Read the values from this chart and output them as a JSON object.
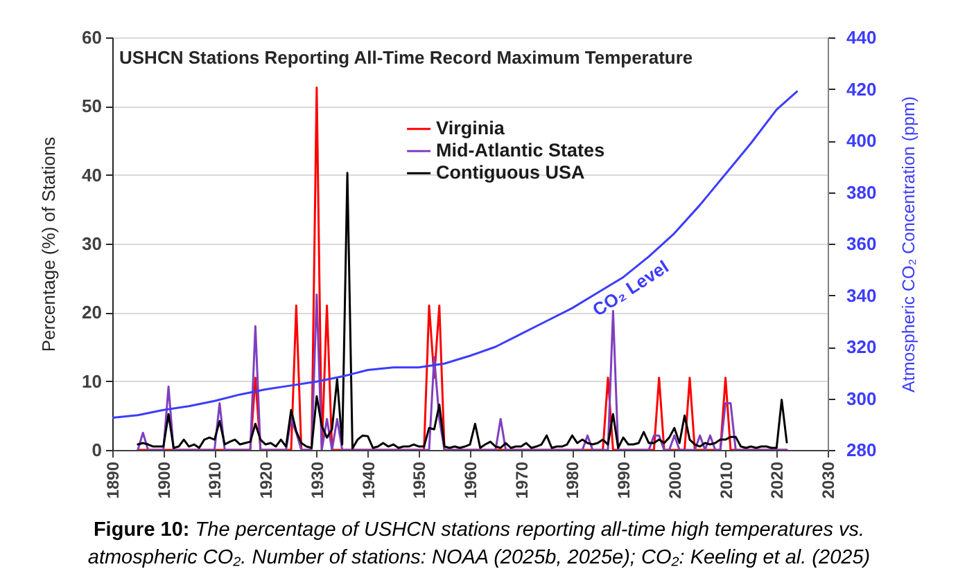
{
  "chart_data": {
    "type": "line",
    "title": "USHCN Stations Reporting All-Time Record Maximum Temperature",
    "ylabel": "Percentage (%) of Stations",
    "y2label": "Atmospheric CO₂ Concentration (ppm)",
    "xlim": [
      1890,
      2030
    ],
    "xticks": [
      1890,
      1900,
      1910,
      1920,
      1930,
      1940,
      1950,
      1960,
      1970,
      1980,
      1990,
      2000,
      2010,
      2020,
      2030
    ],
    "ylim": [
      0,
      60
    ],
    "yticks": [
      0,
      10,
      20,
      30,
      40,
      50,
      60
    ],
    "y2lim": [
      280,
      440
    ],
    "y2ticks": [
      280,
      300,
      320,
      340,
      360,
      380,
      400,
      420,
      440
    ],
    "grid": "y",
    "legend": "top",
    "series": [
      {
        "name": "Virginia",
        "color": "#ff0000",
        "x": [
          1895,
          1917,
          1918,
          1919,
          1925,
          1926,
          1927,
          1929,
          1930,
          1931,
          1932,
          1933,
          1951,
          1952,
          1953,
          1954,
          1955,
          1986,
          1987,
          1988,
          1996,
          1997,
          1998,
          2002,
          2003,
          2004,
          2009,
          2010,
          2011,
          2022
        ],
        "values": [
          0,
          0,
          10.5,
          0,
          0,
          21,
          0,
          0,
          52.7,
          0,
          21,
          0,
          0,
          21,
          10.5,
          21,
          0,
          0,
          10.5,
          0,
          0,
          10.5,
          0,
          0,
          10.5,
          0,
          0,
          10.5,
          0,
          0
        ]
      },
      {
        "name": "Mid-Atlantic States",
        "color": "#7f3fbf",
        "x": [
          1895,
          1896,
          1897,
          1900,
          1901,
          1902,
          1910,
          1911,
          1912,
          1917,
          1918,
          1919,
          1924,
          1925,
          1926,
          1927,
          1929,
          1930,
          1931,
          1932,
          1933,
          1934,
          1935,
          1952,
          1953,
          1954,
          1955,
          1965,
          1966,
          1967,
          1982,
          1983,
          1984,
          1987,
          1988,
          1989,
          1995,
          1996,
          1997,
          1998,
          1999,
          2000,
          2001,
          2004,
          2005,
          2006,
          2007,
          2008,
          2009,
          2010,
          2011,
          2012,
          2022
        ],
        "values": [
          0,
          2.5,
          0,
          0,
          9.2,
          0,
          0,
          6.8,
          0,
          0,
          18.0,
          0,
          0,
          4.5,
          2.5,
          0,
          0,
          22.6,
          0,
          4.5,
          0,
          4.5,
          0,
          0,
          13.5,
          4.5,
          0,
          0,
          4.5,
          0,
          0,
          2.1,
          0,
          0,
          20.2,
          0,
          0,
          2.1,
          2.1,
          0,
          0,
          2.1,
          0,
          0,
          2.1,
          0,
          2.1,
          0,
          0,
          6.8,
          6.8,
          0,
          0
        ]
      },
      {
        "name": "Contiguous USA",
        "color": "#000000",
        "x": [
          1895,
          1896,
          1897,
          1898,
          1899,
          1900,
          1901,
          1902,
          1903,
          1904,
          1905,
          1906,
          1907,
          1908,
          1909,
          1910,
          1911,
          1912,
          1913,
          1914,
          1915,
          1916,
          1917,
          1918,
          1919,
          1920,
          1921,
          1922,
          1923,
          1924,
          1925,
          1926,
          1927,
          1928,
          1929,
          1930,
          1931,
          1932,
          1933,
          1934,
          1935,
          1936,
          1937,
          1938,
          1939,
          1940,
          1941,
          1942,
          1943,
          1944,
          1945,
          1946,
          1947,
          1948,
          1949,
          1950,
          1951,
          1952,
          1953,
          1954,
          1955,
          1956,
          1957,
          1958,
          1959,
          1960,
          1961,
          1962,
          1963,
          1964,
          1965,
          1966,
          1967,
          1968,
          1969,
          1970,
          1971,
          1972,
          1973,
          1974,
          1975,
          1976,
          1977,
          1978,
          1979,
          1980,
          1981,
          1982,
          1983,
          1984,
          1985,
          1986,
          1987,
          1988,
          1989,
          1990,
          1991,
          1992,
          1993,
          1994,
          1995,
          1996,
          1997,
          1998,
          1999,
          2000,
          2001,
          2002,
          2003,
          2004,
          2005,
          2006,
          2007,
          2008,
          2009,
          2010,
          2011,
          2012,
          2013,
          2014,
          2015,
          2016,
          2017,
          2018,
          2019,
          2020,
          2021,
          2022
        ],
        "values": [
          0.8,
          1.0,
          0.8,
          0.5,
          0.5,
          0.5,
          5.2,
          0.3,
          0.5,
          1.5,
          0.5,
          0.8,
          0.3,
          1.5,
          1.8,
          1.5,
          4.2,
          0.8,
          1.2,
          1.5,
          0.8,
          1.0,
          1.2,
          3.8,
          1.5,
          0.8,
          1.0,
          0.5,
          1.5,
          0.5,
          5.8,
          2.7,
          1.0,
          0.5,
          0.3,
          7.8,
          3.5,
          1.8,
          3.0,
          10.3,
          0.8,
          40.3,
          0.2,
          1.5,
          2.1,
          2.0,
          0.3,
          0.5,
          1.0,
          0.5,
          0.8,
          0.3,
          0.5,
          0.5,
          0.8,
          0.5,
          0.5,
          3.2,
          3.0,
          6.6,
          0.5,
          0.3,
          0.5,
          0.3,
          0.5,
          0.8,
          3.8,
          0.3,
          0.8,
          1.2,
          0.5,
          0.3,
          1.0,
          0.3,
          0.5,
          0.5,
          1.0,
          0.3,
          0.5,
          0.8,
          2.1,
          0.3,
          0.5,
          0.5,
          0.8,
          2.1,
          1.0,
          1.5,
          1.0,
          0.8,
          1.0,
          1.5,
          0.8,
          5.2,
          0.3,
          1.8,
          0.8,
          0.8,
          1.0,
          2.6,
          1.0,
          1.0,
          1.5,
          1.0,
          1.8,
          3.2,
          1.0,
          5.0,
          1.5,
          0.8,
          0.5,
          1.0,
          0.8,
          1.0,
          1.5,
          1.5,
          1.9,
          1.9,
          0.5,
          0.3,
          0.5,
          0.3,
          0.5,
          0.5,
          0.3,
          0.3,
          7.3,
          1.1
        ]
      },
      {
        "name": "CO₂ Level",
        "color": "#3c3cff",
        "axis": "y2",
        "x": [
          1890,
          1895,
          1900,
          1905,
          1910,
          1915,
          1920,
          1925,
          1930,
          1935,
          1940,
          1945,
          1950,
          1955,
          1960,
          1965,
          1970,
          1975,
          1980,
          1985,
          1990,
          1995,
          2000,
          2005,
          2010,
          2015,
          2020,
          2024
        ],
        "values": [
          292.5,
          293.5,
          295.5,
          297,
          299,
          301.5,
          303.5,
          305,
          306.5,
          308.5,
          311,
          312,
          312,
          313.5,
          316.5,
          320,
          325,
          330,
          335,
          341,
          347,
          355,
          364,
          375,
          387,
          399,
          412,
          419
        ]
      }
    ],
    "annotations": [
      "Figure 10: The percentage of USHCN stations reporting all-time high temperatures vs. atmospheric CO₂. Number of stations: NOAA (2025b, 2025e); CO₂: Keeling et al. (2025)"
    ]
  }
}
